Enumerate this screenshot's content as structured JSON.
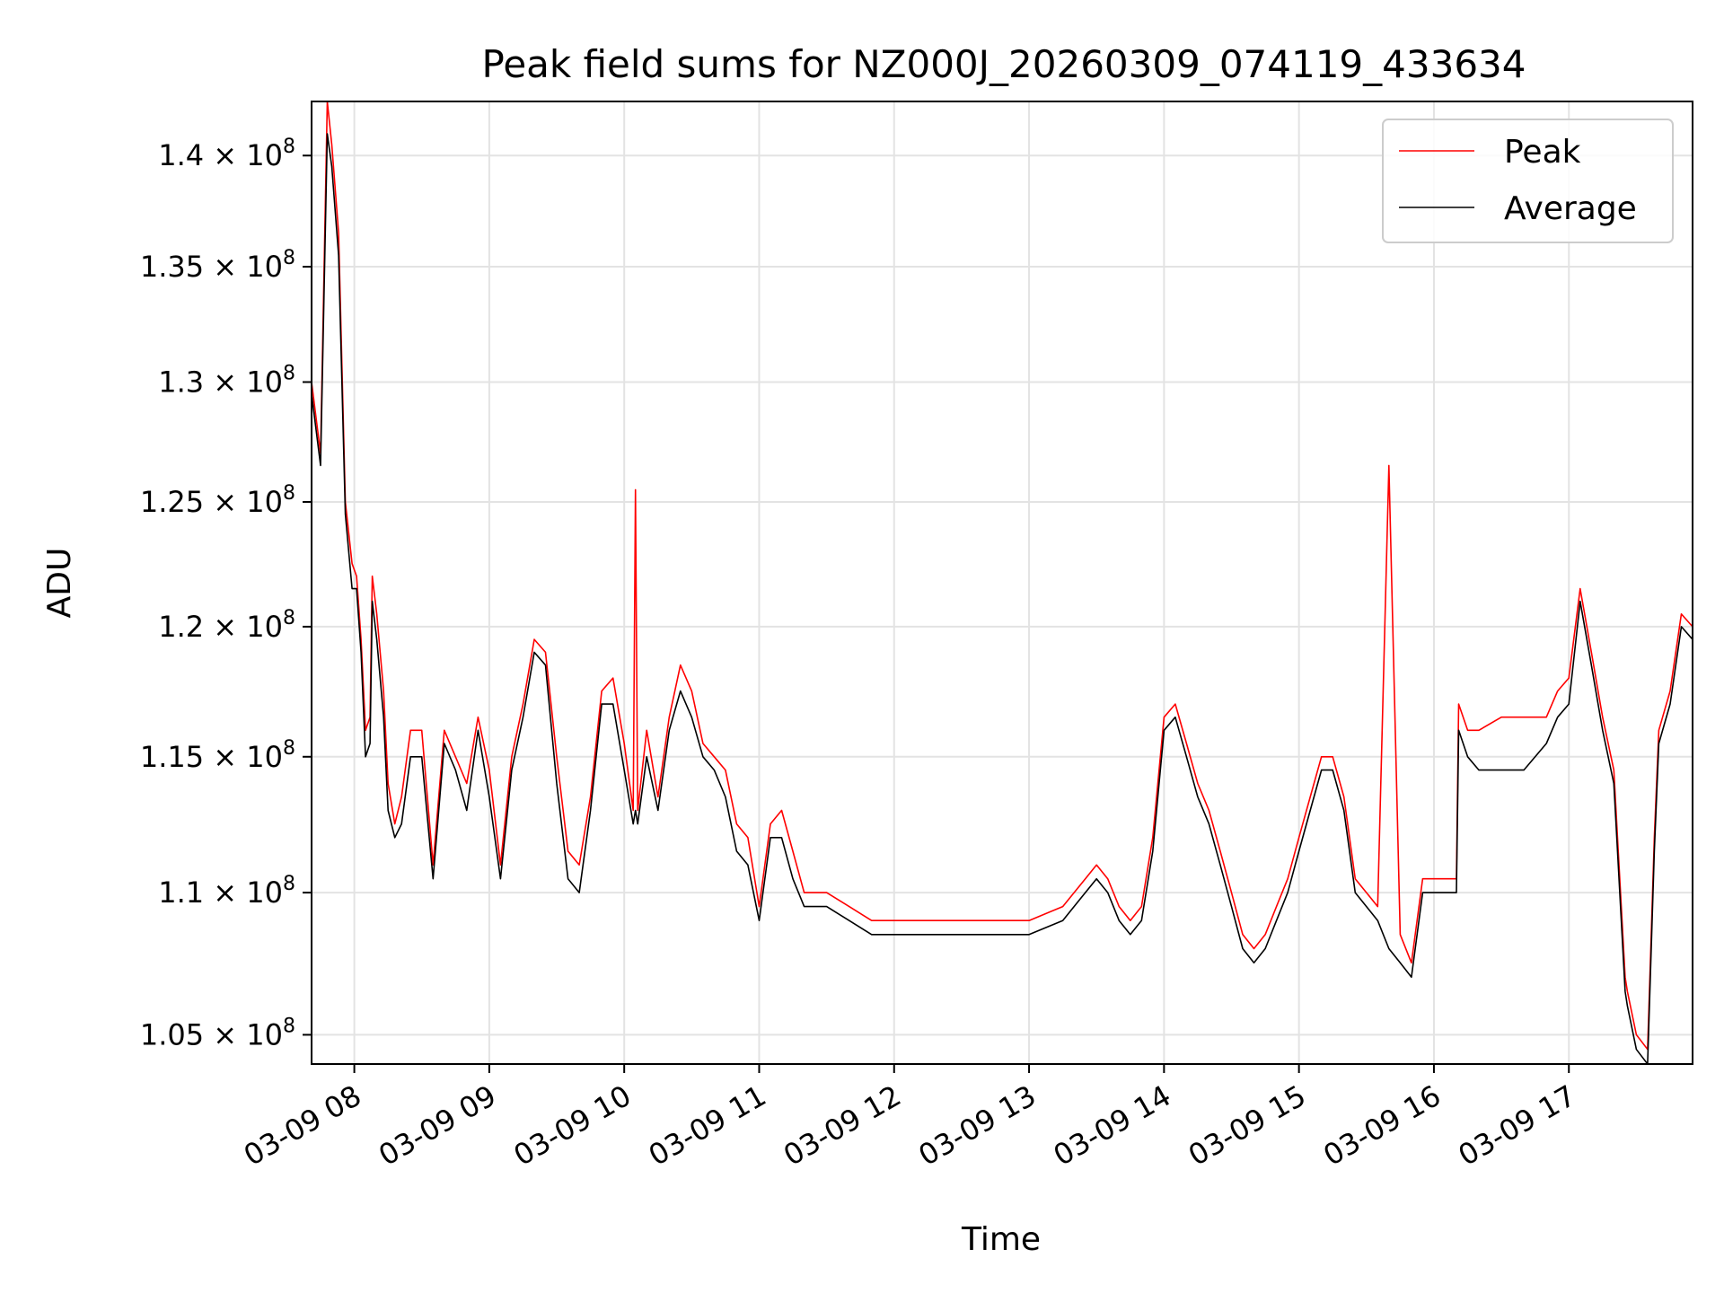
{
  "chart_data": {
    "type": "line",
    "title": "Peak field sums for NZ000J_20260309_074119_433634",
    "xlabel": "Time",
    "ylabel": "ADU",
    "y_scale": "log",
    "xlim": [
      "2026-03-09 07:41",
      "2026-03-09 17:55"
    ],
    "ylim": [
      104000000,
      142500000
    ],
    "grid": true,
    "legend_position": "top-right",
    "x_ticks": [
      "03-09 08",
      "03-09 09",
      "03-09 10",
      "03-09 11",
      "03-09 12",
      "03-09 13",
      "03-09 14",
      "03-09 15",
      "03-09 16",
      "03-09 17"
    ],
    "y_ticks": [
      {
        "value": 105000000,
        "mantissa": "1.05",
        "exp": "8"
      },
      {
        "value": 110000000,
        "mantissa": "1.1",
        "exp": "8"
      },
      {
        "value": 115000000,
        "mantissa": "1.15",
        "exp": "8"
      },
      {
        "value": 120000000,
        "mantissa": "1.2",
        "exp": "8"
      },
      {
        "value": 125000000,
        "mantissa": "1.25",
        "exp": "8"
      },
      {
        "value": 130000000,
        "mantissa": "1.3",
        "exp": "8"
      },
      {
        "value": 135000000,
        "mantissa": "1.35",
        "exp": "8"
      },
      {
        "value": 140000000,
        "mantissa": "1.4",
        "exp": "8"
      }
    ],
    "series": [
      {
        "name": "Peak",
        "color": "#ff0000",
        "x": [
          "2026-03-09 07:41",
          "2026-03-09 07:45",
          "2026-03-09 07:48",
          "2026-03-09 07:50",
          "2026-03-09 07:53",
          "2026-03-09 07:56",
          "2026-03-09 07:59",
          "2026-03-09 08:01",
          "2026-03-09 08:03",
          "2026-03-09 08:05",
          "2026-03-09 08:07",
          "2026-03-09 08:08",
          "2026-03-09 08:10",
          "2026-03-09 08:13",
          "2026-03-09 08:15",
          "2026-03-09 08:18",
          "2026-03-09 08:21",
          "2026-03-09 08:25",
          "2026-03-09 08:30",
          "2026-03-09 08:35",
          "2026-03-09 08:40",
          "2026-03-09 08:45",
          "2026-03-09 08:50",
          "2026-03-09 08:55",
          "2026-03-09 09:00",
          "2026-03-09 09:05",
          "2026-03-09 09:10",
          "2026-03-09 09:15",
          "2026-03-09 09:20",
          "2026-03-09 09:25",
          "2026-03-09 09:30",
          "2026-03-09 09:35",
          "2026-03-09 09:40",
          "2026-03-09 09:45",
          "2026-03-09 09:50",
          "2026-03-09 09:55",
          "2026-03-09 10:00",
          "2026-03-09 10:04",
          "2026-03-09 10:05",
          "2026-03-09 10:06",
          "2026-03-09 10:10",
          "2026-03-09 10:15",
          "2026-03-09 10:20",
          "2026-03-09 10:25",
          "2026-03-09 10:30",
          "2026-03-09 10:35",
          "2026-03-09 10:40",
          "2026-03-09 10:45",
          "2026-03-09 10:50",
          "2026-03-09 10:55",
          "2026-03-09 11:00",
          "2026-03-09 11:05",
          "2026-03-09 11:10",
          "2026-03-09 11:15",
          "2026-03-09 11:20",
          "2026-03-09 11:30",
          "2026-03-09 11:40",
          "2026-03-09 11:50",
          "2026-03-09 12:00",
          "2026-03-09 12:15",
          "2026-03-09 12:30",
          "2026-03-09 12:45",
          "2026-03-09 13:00",
          "2026-03-09 13:15",
          "2026-03-09 13:25",
          "2026-03-09 13:30",
          "2026-03-09 13:35",
          "2026-03-09 13:40",
          "2026-03-09 13:45",
          "2026-03-09 13:50",
          "2026-03-09 13:55",
          "2026-03-09 14:00",
          "2026-03-09 14:05",
          "2026-03-09 14:10",
          "2026-03-09 14:15",
          "2026-03-09 14:20",
          "2026-03-09 14:25",
          "2026-03-09 14:30",
          "2026-03-09 14:35",
          "2026-03-09 14:40",
          "2026-03-09 14:45",
          "2026-03-09 14:50",
          "2026-03-09 14:55",
          "2026-03-09 15:00",
          "2026-03-09 15:05",
          "2026-03-09 15:10",
          "2026-03-09 15:15",
          "2026-03-09 15:20",
          "2026-03-09 15:25",
          "2026-03-09 15:30",
          "2026-03-09 15:35",
          "2026-03-09 15:40",
          "2026-03-09 15:45",
          "2026-03-09 15:50",
          "2026-03-09 15:55",
          "2026-03-09 16:00",
          "2026-03-09 16:05",
          "2026-03-09 16:10",
          "2026-03-09 16:11",
          "2026-03-09 16:15",
          "2026-03-09 16:20",
          "2026-03-09 16:30",
          "2026-03-09 16:40",
          "2026-03-09 16:50",
          "2026-03-09 16:55",
          "2026-03-09 17:00",
          "2026-03-09 17:05",
          "2026-03-09 17:10",
          "2026-03-09 17:15",
          "2026-03-09 17:20",
          "2026-03-09 17:25",
          "2026-03-09 17:26",
          "2026-03-09 17:30",
          "2026-03-09 17:35",
          "2026-03-09 17:38",
          "2026-03-09 17:40",
          "2026-03-09 17:45",
          "2026-03-09 17:50",
          "2026-03-09 17:55"
        ],
        "values": [
          130000000,
          127000000,
          142500000,
          140500000,
          136500000,
          125000000,
          122500000,
          122000000,
          119500000,
          116000000,
          116500000,
          122000000,
          120500000,
          117500000,
          114000000,
          112500000,
          113500000,
          116000000,
          116000000,
          111000000,
          116000000,
          115000000,
          114000000,
          116500000,
          114500000,
          111000000,
          115000000,
          117000000,
          119500000,
          119000000,
          115000000,
          111500000,
          111000000,
          113500000,
          117500000,
          118000000,
          115500000,
          113000000,
          125500000,
          113000000,
          116000000,
          113500000,
          116500000,
          118500000,
          117500000,
          115500000,
          115000000,
          114500000,
          112500000,
          112000000,
          109500000,
          112500000,
          113000000,
          111500000,
          110000000,
          110000000,
          109500000,
          109000000,
          109000000,
          109000000,
          109000000,
          109000000,
          109000000,
          109500000,
          110500000,
          111000000,
          110500000,
          109500000,
          109000000,
          109500000,
          112000000,
          116500000,
          117000000,
          115500000,
          114000000,
          113000000,
          111500000,
          110000000,
          108500000,
          108000000,
          108500000,
          109500000,
          110500000,
          112000000,
          113500000,
          115000000,
          115000000,
          113500000,
          110500000,
          110000000,
          109500000,
          126500000,
          108500000,
          107500000,
          110500000,
          110500000,
          110500000,
          110500000,
          117000000,
          116000000,
          116000000,
          116500000,
          116500000,
          116500000,
          117500000,
          118000000,
          121500000,
          119000000,
          116500000,
          114500000,
          107000000,
          106500000,
          105000000,
          104500000,
          112000000,
          116000000,
          117500000,
          120500000,
          120000000
        ]
      },
      {
        "name": "Average",
        "color": "#000000",
        "x": [
          "2026-03-09 07:41",
          "2026-03-09 07:45",
          "2026-03-09 07:48",
          "2026-03-09 07:50",
          "2026-03-09 07:53",
          "2026-03-09 07:56",
          "2026-03-09 07:59",
          "2026-03-09 08:01",
          "2026-03-09 08:03",
          "2026-03-09 08:05",
          "2026-03-09 08:07",
          "2026-03-09 08:08",
          "2026-03-09 08:10",
          "2026-03-09 08:13",
          "2026-03-09 08:15",
          "2026-03-09 08:18",
          "2026-03-09 08:21",
          "2026-03-09 08:25",
          "2026-03-09 08:30",
          "2026-03-09 08:35",
          "2026-03-09 08:40",
          "2026-03-09 08:45",
          "2026-03-09 08:50",
          "2026-03-09 08:55",
          "2026-03-09 09:00",
          "2026-03-09 09:05",
          "2026-03-09 09:10",
          "2026-03-09 09:15",
          "2026-03-09 09:20",
          "2026-03-09 09:25",
          "2026-03-09 09:30",
          "2026-03-09 09:35",
          "2026-03-09 09:40",
          "2026-03-09 09:45",
          "2026-03-09 09:50",
          "2026-03-09 09:55",
          "2026-03-09 10:00",
          "2026-03-09 10:04",
          "2026-03-09 10:05",
          "2026-03-09 10:06",
          "2026-03-09 10:10",
          "2026-03-09 10:15",
          "2026-03-09 10:20",
          "2026-03-09 10:25",
          "2026-03-09 10:30",
          "2026-03-09 10:35",
          "2026-03-09 10:40",
          "2026-03-09 10:45",
          "2026-03-09 10:50",
          "2026-03-09 10:55",
          "2026-03-09 11:00",
          "2026-03-09 11:05",
          "2026-03-09 11:10",
          "2026-03-09 11:15",
          "2026-03-09 11:20",
          "2026-03-09 11:30",
          "2026-03-09 11:40",
          "2026-03-09 11:50",
          "2026-03-09 12:00",
          "2026-03-09 12:15",
          "2026-03-09 12:30",
          "2026-03-09 12:45",
          "2026-03-09 13:00",
          "2026-03-09 13:15",
          "2026-03-09 13:25",
          "2026-03-09 13:30",
          "2026-03-09 13:35",
          "2026-03-09 13:40",
          "2026-03-09 13:45",
          "2026-03-09 13:50",
          "2026-03-09 13:55",
          "2026-03-09 14:00",
          "2026-03-09 14:05",
          "2026-03-09 14:10",
          "2026-03-09 14:15",
          "2026-03-09 14:20",
          "2026-03-09 14:25",
          "2026-03-09 14:30",
          "2026-03-09 14:35",
          "2026-03-09 14:40",
          "2026-03-09 14:45",
          "2026-03-09 14:50",
          "2026-03-09 14:55",
          "2026-03-09 15:00",
          "2026-03-09 15:05",
          "2026-03-09 15:10",
          "2026-03-09 15:15",
          "2026-03-09 15:20",
          "2026-03-09 15:25",
          "2026-03-09 15:30",
          "2026-03-09 15:35",
          "2026-03-09 15:40",
          "2026-03-09 15:45",
          "2026-03-09 15:50",
          "2026-03-09 15:55",
          "2026-03-09 16:00",
          "2026-03-09 16:05",
          "2026-03-09 16:10",
          "2026-03-09 16:11",
          "2026-03-09 16:15",
          "2026-03-09 16:20",
          "2026-03-09 16:30",
          "2026-03-09 16:40",
          "2026-03-09 16:50",
          "2026-03-09 16:55",
          "2026-03-09 17:00",
          "2026-03-09 17:05",
          "2026-03-09 17:10",
          "2026-03-09 17:15",
          "2026-03-09 17:20",
          "2026-03-09 17:25",
          "2026-03-09 17:26",
          "2026-03-09 17:30",
          "2026-03-09 17:35",
          "2026-03-09 17:38",
          "2026-03-09 17:40",
          "2026-03-09 17:45",
          "2026-03-09 17:50",
          "2026-03-09 17:55"
        ],
        "values": [
          129500000,
          126500000,
          141000000,
          139500000,
          135500000,
          124500000,
          121500000,
          121500000,
          119000000,
          115000000,
          115500000,
          121000000,
          119500000,
          116500000,
          113000000,
          112000000,
          112500000,
          115000000,
          115000000,
          110500000,
          115500000,
          114500000,
          113000000,
          116000000,
          113500000,
          110500000,
          114500000,
          116500000,
          119000000,
          118500000,
          114000000,
          110500000,
          110000000,
          113000000,
          117000000,
          117000000,
          114500000,
          112500000,
          113000000,
          112500000,
          115000000,
          113000000,
          116000000,
          117500000,
          116500000,
          115000000,
          114500000,
          113500000,
          111500000,
          111000000,
          109000000,
          112000000,
          112000000,
          110500000,
          109500000,
          109500000,
          109000000,
          108500000,
          108500000,
          108500000,
          108500000,
          108500000,
          108500000,
          109000000,
          110000000,
          110500000,
          110000000,
          109000000,
          108500000,
          109000000,
          111500000,
          116000000,
          116500000,
          115000000,
          113500000,
          112500000,
          111000000,
          109500000,
          108000000,
          107500000,
          108000000,
          109000000,
          110000000,
          111500000,
          113000000,
          114500000,
          114500000,
          113000000,
          110000000,
          109500000,
          109000000,
          108000000,
          107500000,
          107000000,
          110000000,
          110000000,
          110000000,
          110000000,
          116000000,
          115000000,
          114500000,
          114500000,
          114500000,
          115500000,
          116500000,
          117000000,
          121000000,
          118500000,
          116000000,
          114000000,
          106500000,
          106000000,
          104500000,
          104000000,
          111500000,
          115500000,
          117000000,
          120000000,
          119500000
        ]
      }
    ]
  }
}
